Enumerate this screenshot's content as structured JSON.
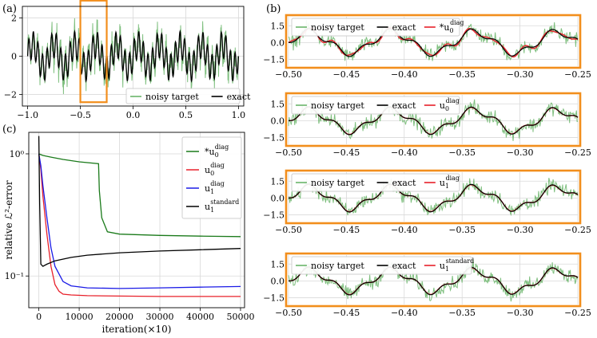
{
  "figure": {
    "panel_labels": [
      "(a)",
      "(b)",
      "(c)"
    ]
  },
  "chart_data": [
    {
      "id": "a",
      "type": "line",
      "xlim": [
        -1.05,
        1.05
      ],
      "ylim": [
        -2.6,
        2.6
      ],
      "xticks": [
        -1.0,
        -0.5,
        0.0,
        0.5,
        1.0
      ],
      "xtick_labels": [
        "−1.0",
        "−0.5",
        "0.0",
        "0.5",
        "1.0"
      ],
      "yticks": [
        -2,
        0,
        2
      ],
      "ytick_labels": [
        "−2",
        "0",
        "2"
      ],
      "grid": true,
      "legend_position": "lower-right",
      "highlight_region": {
        "x": [
          -0.5,
          -0.25
        ],
        "y": [
          -2.4,
          2.9
        ],
        "color": "#f28e1c"
      },
      "series": [
        {
          "name": "noisy target",
          "color": "#6ab56a",
          "style": "noisy",
          "amplitude": 1.0,
          "noise": 0.9
        },
        {
          "name": "exact",
          "color": "#000000",
          "style": "smooth",
          "amplitude": 1.0
        }
      ]
    },
    {
      "id": "b",
      "type": "line",
      "frame_color": "#f28e1c",
      "xlim": [
        -0.5,
        -0.25
      ],
      "ylim": [
        -2.1,
        2.3
      ],
      "xticks": [
        -0.5,
        -0.45,
        -0.4,
        -0.35,
        -0.3,
        -0.25
      ],
      "xtick_labels": [
        "−0.50",
        "−0.45",
        "−0.40",
        "−0.35",
        "−0.30",
        "−0.25"
      ],
      "yticks": [
        1.5,
        0.0,
        -1.5
      ],
      "ytick_labels": [
        "1.5",
        "0.0",
        "−1.5"
      ],
      "grid": true,
      "legend_position": "top-left",
      "subplots": [
        {
          "model_base": "*u",
          "model_sub": "0",
          "model_sup": "diag",
          "fit_offset": 0.15
        },
        {
          "model_base": "u",
          "model_sub": "0",
          "model_sup": "diag",
          "fit_offset": 0.0
        },
        {
          "model_base": "u",
          "model_sub": "1",
          "model_sup": "diag",
          "fit_offset": 0.0
        },
        {
          "model_base": "u",
          "model_sub": "1",
          "model_sup": "standard",
          "fit_offset": 0.0
        }
      ],
      "series_names": {
        "noisy": "noisy target",
        "exact": "exact"
      },
      "series_colors": {
        "noisy": "#6ab56a",
        "exact": "#000000",
        "model": "#e8202a"
      }
    },
    {
      "id": "c",
      "type": "line",
      "xlabel": "iteration(×10)",
      "ylabel": "relative ℒ²-error",
      "yscale": "log",
      "xlim": [
        -2500,
        51000
      ],
      "ylim": [
        0.055,
        1.5
      ],
      "xticks": [
        0,
        10000,
        20000,
        30000,
        40000,
        50000
      ],
      "xtick_labels": [
        "0",
        "10000",
        "20000",
        "30000",
        "40000",
        "50000"
      ],
      "yticks": [
        1.0,
        0.1
      ],
      "ytick_labels": [
        "10⁰",
        "10⁻¹"
      ],
      "grid": true,
      "legend_position": "top-right",
      "series": [
        {
          "base": "*u",
          "sub": "0",
          "sup": "diag",
          "color": "#1a7a1a",
          "x": [
            0,
            1000,
            3000,
            6000,
            10000,
            14800,
            15000,
            15600,
            17000,
            20000,
            30000,
            40000,
            50000
          ],
          "y": [
            1.0,
            0.97,
            0.94,
            0.9,
            0.86,
            0.83,
            0.5,
            0.3,
            0.23,
            0.22,
            0.215,
            0.212,
            0.21
          ]
        },
        {
          "base": "u",
          "sub": "0",
          "sup": "diag",
          "color": "#e8202a",
          "x": [
            0,
            500,
            1000,
            2000,
            3000,
            4000,
            5000,
            6000,
            8000,
            12000,
            20000,
            30000,
            40000,
            50000
          ],
          "y": [
            1.0,
            0.75,
            0.45,
            0.22,
            0.12,
            0.085,
            0.075,
            0.071,
            0.07,
            0.069,
            0.0685,
            0.068,
            0.068,
            0.068
          ]
        },
        {
          "base": "u",
          "sub": "1",
          "sup": "diag",
          "color": "#1a1ae6",
          "x": [
            0,
            500,
            1000,
            2000,
            3000,
            4000,
            6000,
            8000,
            12000,
            20000,
            30000,
            40000,
            50000
          ],
          "y": [
            1.0,
            0.8,
            0.55,
            0.3,
            0.17,
            0.12,
            0.09,
            0.083,
            0.08,
            0.079,
            0.08,
            0.081,
            0.082
          ]
        },
        {
          "base": "u",
          "sub": "1",
          "sup": "standard",
          "color": "#000000",
          "x": [
            0,
            200,
            500,
            1000,
            2000,
            4000,
            8000,
            12000,
            20000,
            30000,
            40000,
            50000
          ],
          "y": [
            1.4,
            0.4,
            0.125,
            0.12,
            0.125,
            0.133,
            0.142,
            0.148,
            0.155,
            0.16,
            0.164,
            0.168
          ]
        }
      ]
    }
  ]
}
